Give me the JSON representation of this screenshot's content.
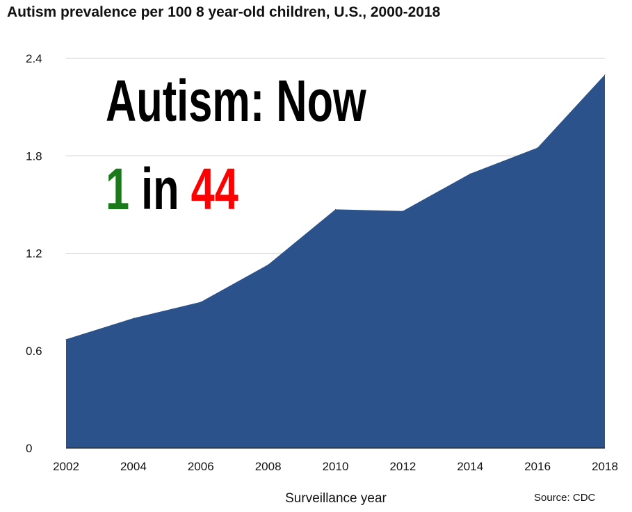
{
  "title": "Autism prevalence per 100 8 year-old children, U.S., 2000-2018",
  "overlay": {
    "line1": "Autism: Now",
    "line2_part1": "1",
    "line2_part2": " in ",
    "line2_part3": "44",
    "colors": {
      "main": "#000000",
      "green": "#1a7a1a",
      "red": "#ff0000"
    }
  },
  "source": "Source: CDC",
  "colors": {
    "area": "#2b528a",
    "grid": "#d0d0d0",
    "axis": "#222222"
  },
  "chart_data": {
    "type": "area",
    "title": "Autism prevalence per 100 8 year-old children, U.S., 2000-2018",
    "xlabel": "Surveillance year",
    "ylabel": "",
    "x": [
      "2002",
      "2004",
      "2006",
      "2008",
      "2010",
      "2012",
      "2014",
      "2016",
      "2018"
    ],
    "values": [
      0.67,
      0.8,
      0.9,
      1.13,
      1.47,
      1.46,
      1.69,
      1.85,
      2.3
    ],
    "ylim": [
      0,
      2.4
    ],
    "yticks": [
      "0",
      "0.6",
      "1.2",
      "1.8",
      "2.4"
    ],
    "grid": true,
    "legend": "none"
  }
}
